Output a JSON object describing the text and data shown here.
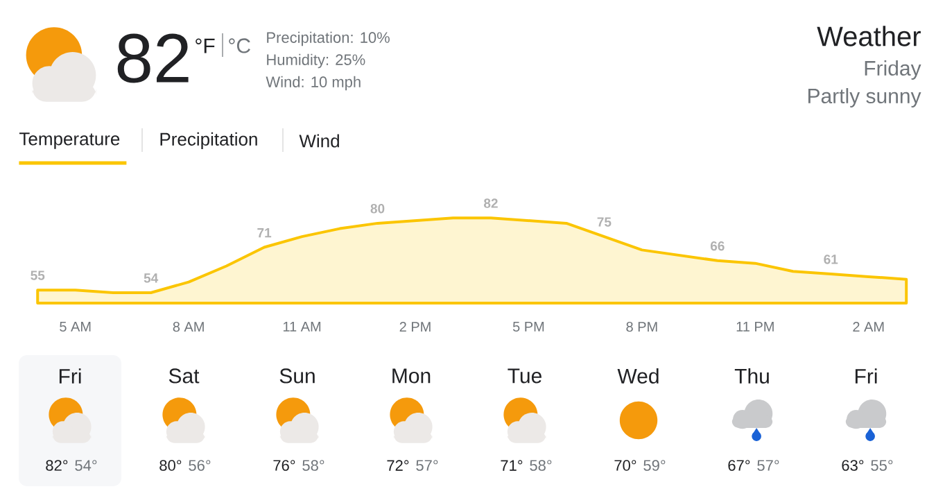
{
  "chart_data": {
    "type": "area",
    "title": "Weather",
    "subtitle": "Friday",
    "categories": [
      null,
      "5 AM",
      null,
      null,
      "8 AM",
      null,
      null,
      "11 AM",
      null,
      null,
      "2 PM",
      null,
      null,
      "5 PM",
      null,
      null,
      "8 PM",
      null,
      null,
      "11 PM",
      null,
      null,
      "2 AM",
      null
    ],
    "values": [
      55,
      55,
      54,
      54,
      58,
      64,
      71,
      75,
      78,
      80,
      81,
      82,
      82,
      81,
      80,
      75,
      70,
      68,
      66,
      65,
      62,
      61,
      60,
      59
    ],
    "value_labels": [
      "55",
      null,
      null,
      "54",
      null,
      null,
      "71",
      null,
      null,
      "80",
      null,
      null,
      "82",
      null,
      null,
      "75",
      null,
      null,
      "66",
      null,
      null,
      "61",
      null,
      null
    ],
    "color": "#fbc500",
    "annotations": [
      "82",
      "°F",
      "°C",
      "Precipitation: 10%",
      "Humidity: 25%",
      "Wind: 10 mph",
      "Partly sunny",
      "Temperature",
      "Precipitation",
      "Wind",
      "Fri",
      "82°",
      "54°",
      "Sat",
      "80°",
      "56°",
      "Sun",
      "76°",
      "58°",
      "Mon",
      "72°",
      "57°",
      "Tue",
      "71°",
      "58°",
      "Wed",
      "70°",
      "59°",
      "Thu",
      "67°",
      "57°",
      "Fri",
      "63°",
      "55°"
    ]
  }
}
